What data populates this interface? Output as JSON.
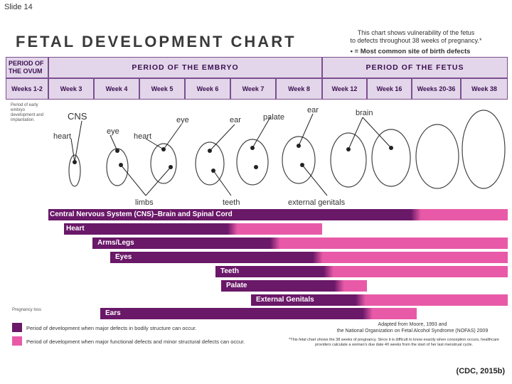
{
  "slide_label": "Slide 14",
  "title": "FETAL DEVELOPMENT CHART",
  "note_lines": [
    "This chart shows vulnerability of the fetus",
    "to defects throughout 38 weeks of pregnancy.*"
  ],
  "note_bold": "• = Most common site of birth defects",
  "period_ovum": "PERIOD OF THE OVUM",
  "period_embryo": "PERIOD OF THE EMBRYO",
  "period_fetus": "PERIOD OF THE FETUS",
  "weeks": [
    "Weeks 1-2",
    "Week 3",
    "Week 4",
    "Week 5",
    "Week 6",
    "Week 7",
    "Week 8",
    "Week 12",
    "Week 16",
    "Weeks 20-36",
    "Week 38"
  ],
  "side_note_early": "Period of early embryo development and implantation.",
  "side_note_loss": "Pregnancy loss",
  "organ_labels": {
    "cns": "CNS",
    "heart1": "heart",
    "eye1": "eye",
    "heart2": "heart",
    "eye2": "eye",
    "ear1": "ear",
    "palate": "palate",
    "ear2": "ear",
    "brain": "brain",
    "limbs": "limbs",
    "teeth": "teeth",
    "genitals": "external genitals"
  },
  "bars": [
    {
      "label": "Central Nervous System (CNS)–Brain and Spinal Cord"
    },
    {
      "label": "Heart"
    },
    {
      "label": "Arms/Legs"
    },
    {
      "label": "Eyes"
    },
    {
      "label": "Teeth"
    },
    {
      "label": "Palate"
    },
    {
      "label": "External Genitals"
    },
    {
      "label": "Ears"
    }
  ],
  "legend": {
    "major": "Period of development when major defects in bodily structure can occur.",
    "minor": "Period of development when major functional defects and minor structural defects can occur."
  },
  "adapted": [
    "Adapted from Moore, 1993 and",
    "the National Organization on Fetal Alcohol Syndrome (NOFAS) 2009"
  ],
  "footnote": "*This fetal chart shows the 38 weeks of pregnancy. Since it is difficult to know exactly when conception occurs, healthcare providers calculate a woman's due date 40 weeks from the start of her last menstrual cycle.",
  "citation": "(CDC, 2015b)",
  "colors": {
    "major": "#6a1868",
    "minor": "#e85aa8",
    "header": "#e3d6ea"
  }
}
